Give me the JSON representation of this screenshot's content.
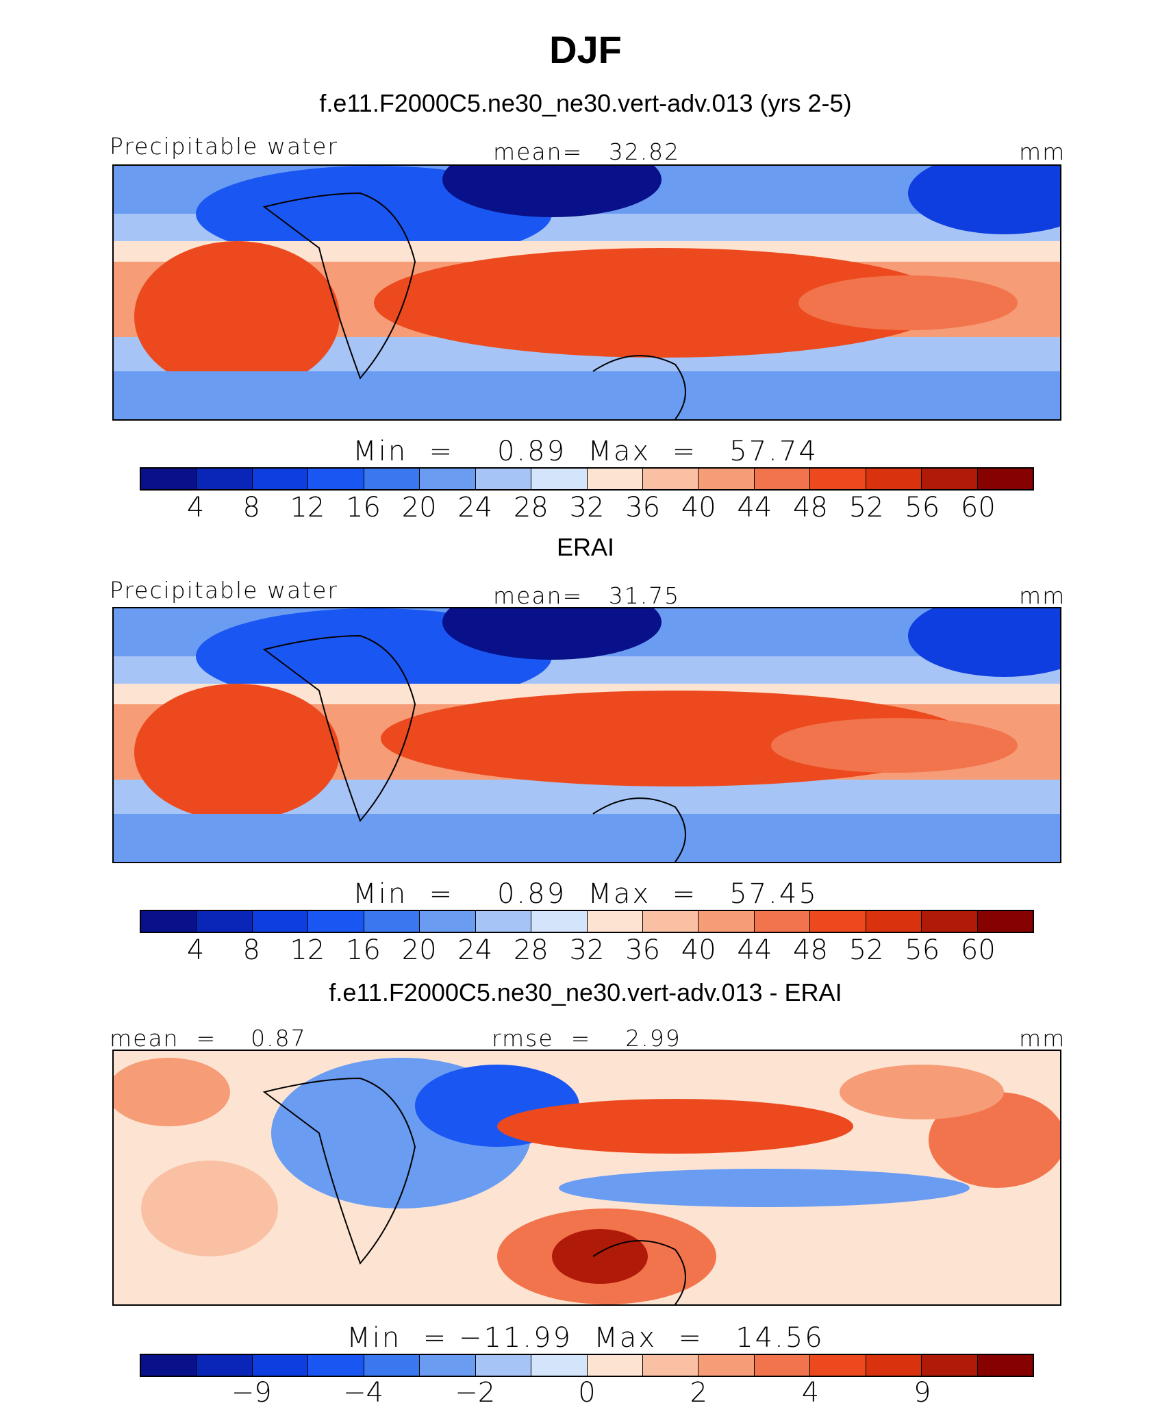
{
  "title": "DJF",
  "colors": [
    "#08108a",
    "#0a26b8",
    "#0e3ee0",
    "#1a56f2",
    "#3a78f0",
    "#6a9cf2",
    "#a6c4f6",
    "#d4e4fa",
    "#fde4d2",
    "#fac0a4",
    "#f69c76",
    "#f2744c",
    "#ec4a1e",
    "#d8320e",
    "#b01a08",
    "#860200"
  ],
  "panels": [
    {
      "case_title": "f.e11.F2000C5.ne30_ne30.vert-adv.013 (yrs 2-5)",
      "left_label": "Precipitable water",
      "center_label": "mean=   32.82",
      "right_label": "mm",
      "min_label": "Min  =",
      "min_value": "0.89",
      "max_label": "Max  =",
      "max_value": "57.74",
      "ticks": [
        "4",
        "8",
        "12",
        "16",
        "20",
        "24",
        "28",
        "32",
        "36",
        "40",
        "44",
        "48",
        "52",
        "56",
        "60"
      ],
      "tick_slots": [
        1,
        2,
        3,
        4,
        5,
        6,
        7,
        8,
        9,
        10,
        11,
        12,
        13,
        14,
        15
      ],
      "type": "field"
    },
    {
      "case_title": "ERAI",
      "left_label": "Precipitable water",
      "center_label": "mean=   31.75",
      "right_label": "mm",
      "min_label": "Min  =",
      "min_value": "0.89",
      "max_label": "Max  =",
      "max_value": "57.45",
      "ticks": [
        "4",
        "8",
        "12",
        "16",
        "20",
        "24",
        "28",
        "32",
        "36",
        "40",
        "44",
        "48",
        "52",
        "56",
        "60"
      ],
      "tick_slots": [
        1,
        2,
        3,
        4,
        5,
        6,
        7,
        8,
        9,
        10,
        11,
        12,
        13,
        14,
        15
      ],
      "type": "field"
    },
    {
      "case_title": "f.e11.F2000C5.ne30_ne30.vert-adv.013 - ERAI",
      "left_label": "mean  =    0.87",
      "center_label": "rmse  =    2.99",
      "right_label": "mm",
      "min_label": "Min  =",
      "min_value": "−11.99",
      "max_label": "Max  =",
      "max_value": "14.56",
      "ticks": [
        "−9",
        "−4",
        "−2",
        "0",
        "2",
        "4",
        "9"
      ],
      "tick_slots": [
        2,
        4,
        6,
        8,
        10,
        12,
        14
      ],
      "type": "diff"
    }
  ]
}
